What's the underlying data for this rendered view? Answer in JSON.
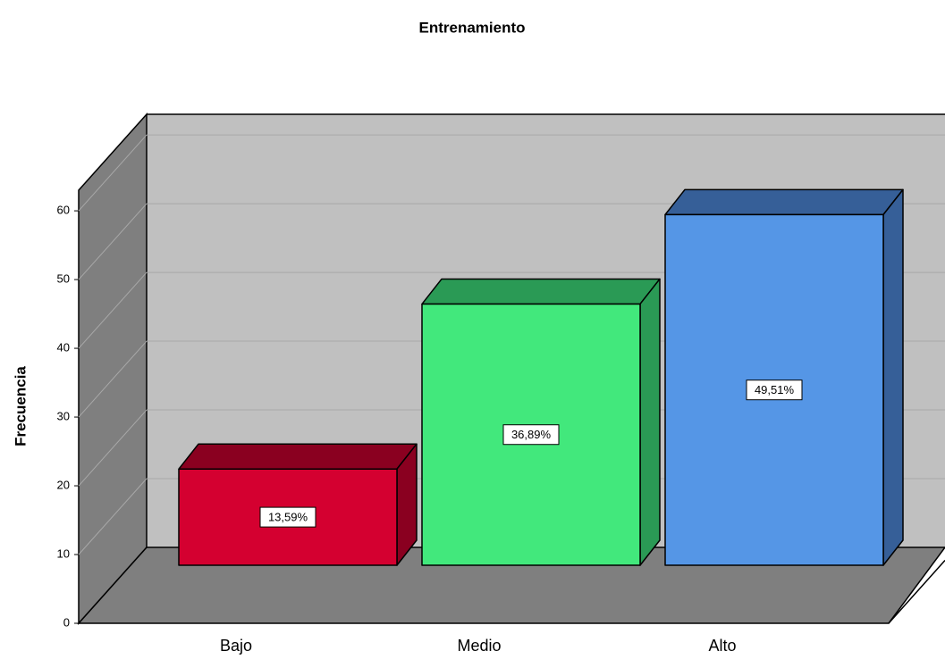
{
  "chart_data": {
    "type": "bar3d",
    "title": "Entrenamiento",
    "y_label": "Frecuencia",
    "categories": [
      "Bajo",
      "Medio",
      "Alto"
    ],
    "values": [
      14,
      38,
      51
    ],
    "percentages": [
      13.59,
      36.89,
      49.51
    ],
    "percentage_labels": [
      "13,59%",
      "36,89%",
      "49,51%"
    ],
    "colors": [
      "#d40030",
      "#42e87c",
      "#5596e6"
    ],
    "side_colors": [
      "#8a0020",
      "#2a9a55",
      "#365f98"
    ],
    "ylim": [
      0,
      63
    ],
    "yticks": [
      0,
      10,
      20,
      30,
      40,
      50,
      60
    ],
    "grid": true
  }
}
